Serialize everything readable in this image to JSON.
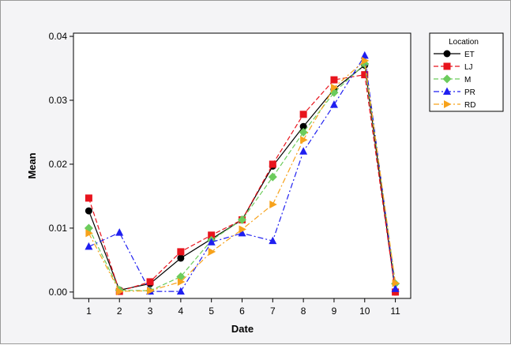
{
  "chart_data": {
    "type": "line",
    "xlabel": "Date",
    "ylabel": "Mean",
    "x": [
      1,
      2,
      3,
      4,
      5,
      6,
      7,
      8,
      9,
      10,
      11
    ],
    "x_tick_labels": [
      "1",
      "2",
      "3",
      "4",
      "5",
      "6",
      "7",
      "8",
      "9",
      "10",
      "11"
    ],
    "xlim": [
      0.5,
      11.5
    ],
    "ylim": [
      -0.001,
      0.0405
    ],
    "y_ticks": [
      0.0,
      0.01,
      0.02,
      0.03,
      0.04
    ],
    "y_tick_labels": [
      "0.00",
      "0.01",
      "0.02",
      "0.03",
      "0.04"
    ],
    "grid": false,
    "legend": {
      "title": "Location",
      "placement": "right"
    },
    "series": [
      {
        "name": "ET",
        "color": "#000000",
        "marker": "circle",
        "dash": "solid",
        "values": [
          0.0127,
          0.0003,
          0.0013,
          0.0053,
          0.0083,
          0.0113,
          0.0197,
          0.0259,
          0.0317,
          0.0355,
          0.0
        ]
      },
      {
        "name": "LJ",
        "color": "#e8141d",
        "marker": "square",
        "dash": "dash",
        "values": [
          0.0147,
          0.0001,
          0.0016,
          0.0063,
          0.0089,
          0.0113,
          0.02,
          0.0278,
          0.0332,
          0.034,
          0.0
        ]
      },
      {
        "name": "M",
        "color": "#6ccc5c",
        "marker": "diamond",
        "dash": "dash",
        "values": [
          0.01,
          0.0003,
          0.0002,
          0.0024,
          0.0081,
          0.0113,
          0.018,
          0.025,
          0.0312,
          0.0357,
          0.0013
        ]
      },
      {
        "name": "PR",
        "color": "#1f1ff0",
        "marker": "triangle",
        "dash": "dashdot",
        "values": [
          0.0071,
          0.0093,
          0.0001,
          0.0001,
          0.0078,
          0.0092,
          0.008,
          0.022,
          0.0293,
          0.037,
          0.0005
        ]
      },
      {
        "name": "RD",
        "color": "#f7a21b",
        "marker": "triangle-right",
        "dash": "dashdot",
        "values": [
          0.0092,
          0.0001,
          0.0002,
          0.0016,
          0.0063,
          0.0098,
          0.0137,
          0.0238,
          0.032,
          0.0362,
          0.0014
        ]
      }
    ]
  }
}
